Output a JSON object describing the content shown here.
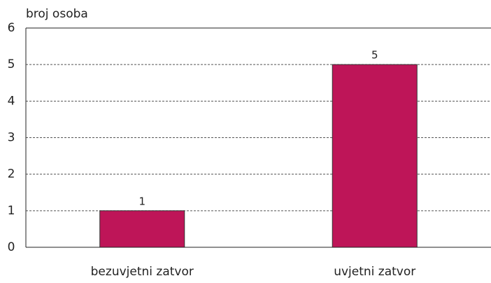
{
  "chart_data": {
    "type": "bar",
    "y_label": "broj osoba",
    "categories": [
      "bezuvjetni zatvor",
      "uvjetni zatvor"
    ],
    "values": [
      1,
      5
    ],
    "color": "#be1558",
    "ylim": [
      0,
      6
    ],
    "yticks": [
      0,
      1,
      2,
      3,
      4,
      5,
      6
    ],
    "grid": true
  }
}
